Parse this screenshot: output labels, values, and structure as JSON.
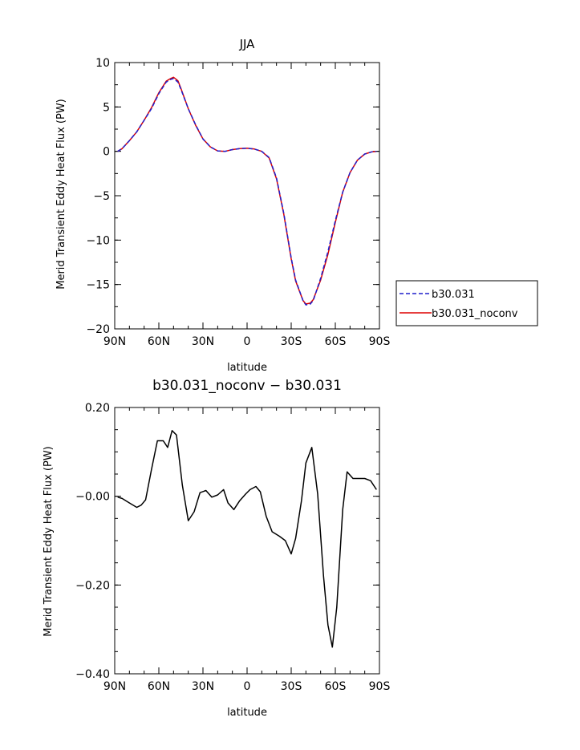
{
  "chart_data": [
    {
      "type": "line",
      "title": "JJA",
      "xlabel": "latitude",
      "ylabel": "Merid Transient Eddy Heat Flux (PW)",
      "xlim": [
        -90,
        90
      ],
      "ylim": [
        -20,
        10
      ],
      "x_ticks": [
        -90,
        -60,
        -30,
        0,
        30,
        60,
        90
      ],
      "x_tick_labels": [
        "90N",
        "60N",
        "30N",
        "0",
        "30S",
        "60S",
        "90S"
      ],
      "y_ticks": [
        -20,
        -15,
        -10,
        -5,
        0,
        5,
        10
      ],
      "y_tick_labels": [
        "−20",
        "−15",
        "−10",
        "−5",
        "0",
        "5",
        "10"
      ],
      "legend": {
        "placement": "right"
      },
      "x": [
        -88,
        -85,
        -80,
        -75,
        -70,
        -65,
        -60,
        -55,
        -52,
        -50,
        -47,
        -45,
        -40,
        -35,
        -30,
        -25,
        -20,
        -15,
        -10,
        -5,
        0,
        5,
        10,
        15,
        20,
        25,
        30,
        33,
        38,
        40,
        43,
        45,
        50,
        55,
        60,
        65,
        70,
        75,
        80,
        85,
        88
      ],
      "series": [
        {
          "name": "b30.031",
          "color": "#1f1fcc",
          "dash": "dashed",
          "values": [
            0.0,
            0.3,
            1.2,
            2.2,
            3.5,
            4.8,
            6.5,
            7.8,
            8.1,
            8.2,
            7.8,
            7.0,
            4.8,
            3.0,
            1.4,
            0.5,
            0.05,
            0.0,
            0.2,
            0.3,
            0.35,
            0.25,
            0.0,
            -0.7,
            -3.0,
            -7.0,
            -12.0,
            -14.5,
            -16.8,
            -17.3,
            -17.2,
            -16.8,
            -14.3,
            -11.3,
            -7.8,
            -4.6,
            -2.4,
            -1.0,
            -0.3,
            -0.05,
            0.0
          ]
        },
        {
          "name": "b30.031_noconv",
          "color": "#dd0000",
          "dash": "solid",
          "values": [
            0.0,
            0.3,
            1.2,
            2.2,
            3.5,
            4.9,
            6.6,
            7.9,
            8.2,
            8.35,
            7.95,
            7.1,
            4.8,
            2.95,
            1.4,
            0.5,
            0.05,
            0.0,
            0.2,
            0.3,
            0.35,
            0.26,
            0.0,
            -0.75,
            -3.1,
            -7.1,
            -12.1,
            -14.6,
            -16.8,
            -17.2,
            -17.1,
            -16.7,
            -14.5,
            -11.6,
            -8.0,
            -4.6,
            -2.4,
            -1.0,
            -0.3,
            -0.05,
            0.0
          ]
        }
      ]
    },
    {
      "type": "line",
      "title": "b30.031_noconv − b30.031",
      "xlabel": "latitude",
      "ylabel": "Merid Transient Eddy Heat Flux (PW)",
      "xlim": [
        -90,
        90
      ],
      "ylim": [
        -0.4,
        0.2
      ],
      "x_ticks": [
        -90,
        -60,
        -30,
        0,
        30,
        60,
        90
      ],
      "x_tick_labels": [
        "90N",
        "60N",
        "30N",
        "0",
        "30S",
        "60S",
        "90S"
      ],
      "y_ticks": [
        -0.4,
        -0.2,
        0.0,
        0.2
      ],
      "y_tick_labels": [
        "−0.40",
        "−0.20",
        "−0.00",
        "0.20"
      ],
      "x": [
        -88,
        -85,
        -80,
        -75,
        -72,
        -69,
        -65,
        -61,
        -57,
        -54,
        -51,
        -48,
        -44,
        -40,
        -36,
        -32,
        -28,
        -24,
        -20,
        -16,
        -13,
        -9,
        -5,
        -1,
        2,
        6,
        9,
        13,
        17,
        22,
        26,
        30,
        33,
        37,
        40,
        44,
        48,
        52,
        55,
        58,
        61,
        65,
        68,
        72,
        76,
        80,
        84,
        88
      ],
      "series": [
        {
          "name": "",
          "color": "#000000",
          "values": [
            -0.002,
            -0.005,
            -0.015,
            -0.025,
            -0.02,
            -0.008,
            0.06,
            0.125,
            0.125,
            0.11,
            0.148,
            0.138,
            0.025,
            -0.055,
            -0.035,
            0.008,
            0.013,
            -0.002,
            0.003,
            0.015,
            -0.015,
            -0.03,
            -0.01,
            0.005,
            0.015,
            0.022,
            0.01,
            -0.045,
            -0.08,
            -0.09,
            -0.1,
            -0.13,
            -0.095,
            -0.01,
            0.075,
            0.11,
            0.005,
            -0.18,
            -0.29,
            -0.34,
            -0.25,
            -0.03,
            0.055,
            0.04,
            0.04,
            0.04,
            0.035,
            0.015
          ]
        }
      ]
    }
  ]
}
